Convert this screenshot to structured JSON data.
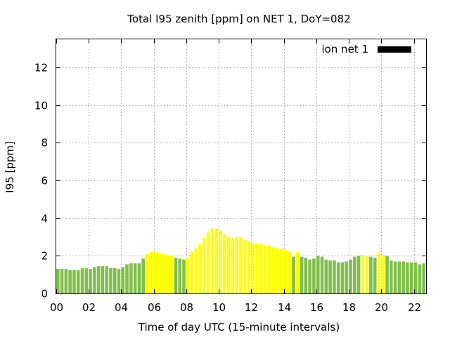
{
  "chart_data": {
    "type": "bar",
    "title": "Total I95 zenith [ppm] on NET 1, DoY=082",
    "xlabel": "Time of day UTC (15-minute intervals)",
    "ylabel": "I95 [ppm]",
    "xlim": [
      0,
      22.75
    ],
    "ylim": [
      0,
      13.5
    ],
    "xticks": [
      0,
      2,
      4,
      6,
      8,
      10,
      12,
      14,
      16,
      18,
      20,
      22
    ],
    "xtick_labels": [
      "00",
      "02",
      "04",
      "06",
      "08",
      "10",
      "12",
      "14",
      "16",
      "18",
      "20",
      "22"
    ],
    "yticks": [
      0,
      2,
      4,
      6,
      8,
      10,
      12
    ],
    "ytick_labels": [
      "0",
      "2",
      "4",
      "6",
      "8",
      "10",
      "12"
    ],
    "grid": true,
    "interval_hours": 0.25,
    "legend": {
      "label": "ion net 1",
      "position": "top-right",
      "color": "#000000"
    },
    "colors": {
      "normal": "#7fbf4a",
      "elevated": "#ffff00"
    },
    "series": [
      {
        "name": "ion net 1",
        "x_start": 0,
        "values": [
          1.3,
          1.3,
          1.3,
          1.25,
          1.25,
          1.25,
          1.35,
          1.35,
          1.3,
          1.4,
          1.45,
          1.45,
          1.45,
          1.35,
          1.35,
          1.3,
          1.4,
          1.55,
          1.6,
          1.6,
          1.6,
          1.85,
          2.1,
          2.2,
          2.2,
          2.15,
          2.1,
          2.05,
          2.0,
          1.9,
          1.85,
          1.8,
          1.9,
          2.2,
          2.4,
          2.65,
          2.95,
          3.25,
          3.45,
          3.45,
          3.35,
          3.15,
          3.0,
          2.95,
          3.0,
          3.0,
          2.85,
          2.75,
          2.65,
          2.65,
          2.65,
          2.55,
          2.55,
          2.45,
          2.4,
          2.35,
          2.3,
          2.2,
          1.95,
          2.2,
          1.95,
          1.9,
          1.8,
          1.85,
          2.0,
          1.95,
          1.8,
          1.75,
          1.75,
          1.65,
          1.65,
          1.7,
          1.8,
          1.95,
          2.0,
          2.05,
          2.0,
          1.95,
          1.9,
          2.1,
          2.05,
          2.0,
          1.75,
          1.7,
          1.7,
          1.7,
          1.65,
          1.65,
          1.65,
          1.55,
          1.6
        ],
        "elevated_flags": [
          0,
          0,
          0,
          0,
          0,
          0,
          0,
          0,
          0,
          0,
          0,
          0,
          0,
          0,
          0,
          0,
          0,
          0,
          0,
          0,
          0,
          0,
          1,
          1,
          1,
          1,
          1,
          1,
          1,
          0,
          0,
          0,
          1,
          1,
          1,
          1,
          1,
          1,
          1,
          1,
          1,
          1,
          1,
          1,
          1,
          1,
          1,
          1,
          1,
          1,
          1,
          1,
          1,
          1,
          1,
          1,
          1,
          1,
          0,
          1,
          0,
          0,
          0,
          0,
          0,
          0,
          0,
          0,
          0,
          0,
          0,
          0,
          0,
          0,
          0,
          1,
          1,
          0,
          0,
          1,
          1,
          0,
          0,
          0,
          0,
          0,
          0,
          0,
          0,
          0,
          0
        ]
      }
    ]
  }
}
